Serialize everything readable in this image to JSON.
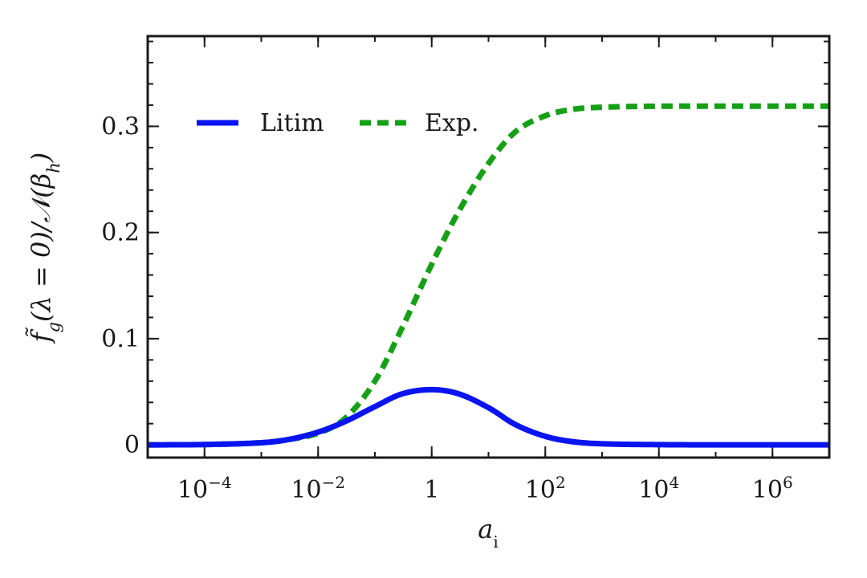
{
  "chart_data": {
    "type": "line",
    "xscale": "log",
    "xlim": [
      1e-05,
      10000000
    ],
    "ylim": [
      -0.012,
      0.385
    ],
    "xlabel": "a_i",
    "ylabel": "f̃_g(λ = 0)/𝒩(β_h)",
    "xticks": [
      {
        "value": 0.0001,
        "label_base": "10",
        "label_exp": "−4"
      },
      {
        "value": 0.01,
        "label_base": "10",
        "label_exp": "−2"
      },
      {
        "value": 1,
        "label_base": "1",
        "label_exp": ""
      },
      {
        "value": 100,
        "label_base": "10",
        "label_exp": "2"
      },
      {
        "value": 10000,
        "label_base": "10",
        "label_exp": "4"
      },
      {
        "value": 1000000,
        "label_base": "10",
        "label_exp": "6"
      }
    ],
    "yticks": [
      {
        "value": 0,
        "label": "0"
      },
      {
        "value": 0.1,
        "label": "0.1"
      },
      {
        "value": 0.2,
        "label": "0.2"
      },
      {
        "value": 0.3,
        "label": "0.3"
      }
    ],
    "legend": {
      "placement": "top-left",
      "position": "inside plot"
    },
    "grid": false,
    "series": [
      {
        "name": "Litim",
        "color": "#0a14f0",
        "style": "solid",
        "x": [
          1e-05,
          0.0001,
          0.001,
          0.003,
          0.01,
          0.03,
          0.1,
          0.3,
          1,
          3,
          10,
          30,
          100,
          300,
          1000,
          10000,
          100000,
          1000000,
          10000000
        ],
        "y": [
          0.0,
          0.0003,
          0.002,
          0.005,
          0.012,
          0.022,
          0.036,
          0.048,
          0.052,
          0.048,
          0.035,
          0.019,
          0.008,
          0.003,
          0.001,
          0.0002,
          0.0,
          0.0,
          0.0
        ]
      },
      {
        "name": "Exp.",
        "color": "#16a016",
        "style": "dashed",
        "x": [
          1e-05,
          0.0001,
          0.001,
          0.003,
          0.01,
          0.03,
          0.1,
          0.3,
          1,
          3,
          10,
          30,
          100,
          300,
          1000,
          10000,
          100000,
          1000000,
          10000000
        ],
        "y": [
          0.0,
          0.0003,
          0.002,
          0.005,
          0.011,
          0.025,
          0.06,
          0.11,
          0.17,
          0.22,
          0.265,
          0.295,
          0.31,
          0.316,
          0.318,
          0.319,
          0.319,
          0.319,
          0.319
        ]
      }
    ]
  }
}
